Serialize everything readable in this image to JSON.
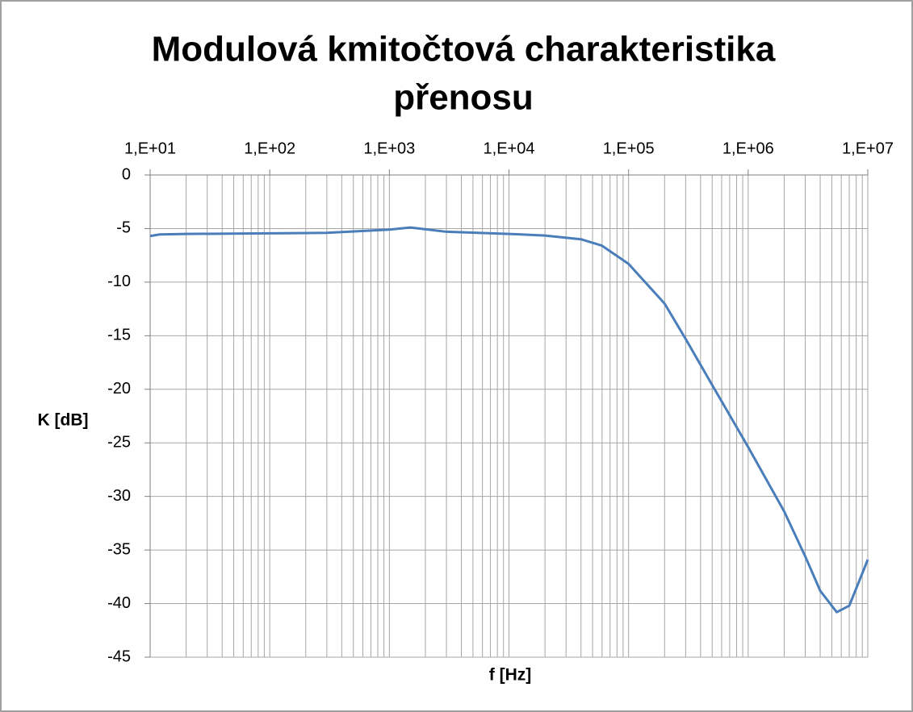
{
  "chart_data": {
    "type": "line",
    "title": [
      "Modulová kmitočtová charakteristika",
      "přenosu"
    ],
    "x_label": "f [Hz]",
    "y_label": "K [dB]",
    "x": [
      10,
      12,
      20,
      100,
      300,
      1000,
      1500,
      3000,
      10000,
      20000,
      40000,
      60000,
      100000,
      200000,
      300000,
      500000,
      1000000,
      2000000,
      3000000,
      4000000,
      5500000,
      7000000,
      10000000
    ],
    "series": [
      {
        "name": "K",
        "color": "#4a7ebb",
        "values": [
          -5.7,
          -5.55,
          -5.5,
          -5.45,
          -5.4,
          -5.1,
          -4.9,
          -5.3,
          -5.5,
          -5.65,
          -6.0,
          -6.6,
          -8.3,
          -12,
          -15.3,
          -19.6,
          -25.4,
          -31.4,
          -35.6,
          -38.8,
          -40.8,
          -40.2,
          -35.9
        ]
      }
    ],
    "xscale": "log",
    "xlim": [
      10,
      10000000
    ],
    "xticks": [
      {
        "value": 10,
        "label": "1,E+01"
      },
      {
        "value": 100,
        "label": "1,E+02"
      },
      {
        "value": 1000,
        "label": "1,E+03"
      },
      {
        "value": 10000,
        "label": "1,E+04"
      },
      {
        "value": 100000,
        "label": "1,E+05"
      },
      {
        "value": 1000000,
        "label": "1,E+06"
      },
      {
        "value": 10000000,
        "label": "1,E+07"
      }
    ],
    "ylim": [
      -45,
      0
    ],
    "yticks": [
      0,
      -5,
      -10,
      -15,
      -20,
      -25,
      -30,
      -35,
      -40,
      -45
    ],
    "grid": true,
    "minor_grid": true
  }
}
